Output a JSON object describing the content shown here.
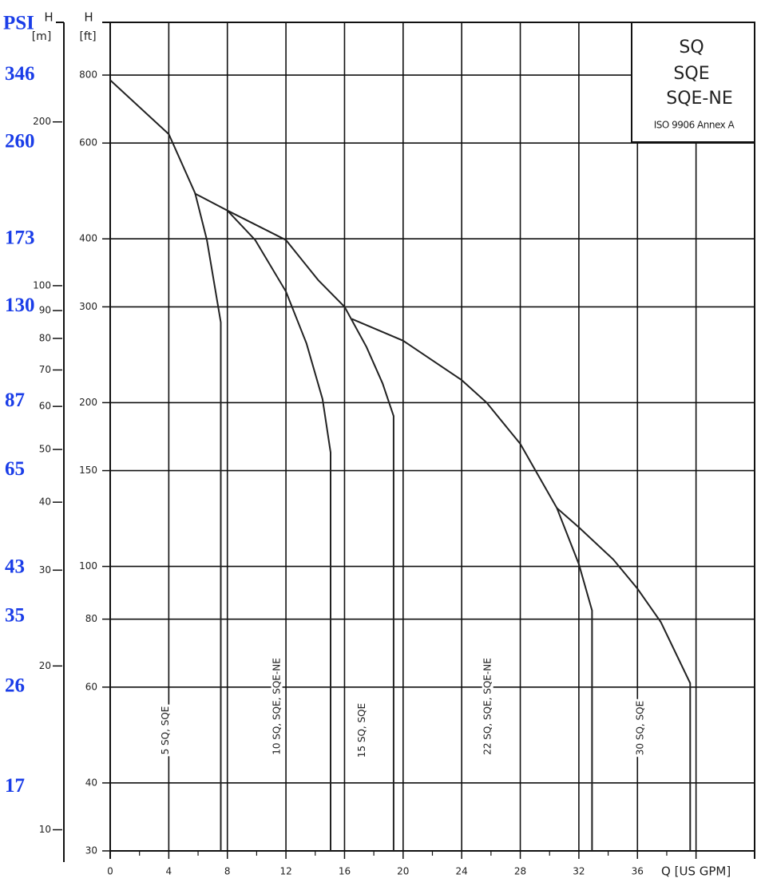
{
  "chart_data": {
    "type": "line",
    "log_scale": true,
    "grid": true,
    "xlim": [
      0,
      44
    ],
    "xticks": [
      0,
      4,
      8,
      12,
      16,
      20,
      24,
      28,
      32,
      36,
      {
        "value": 40,
        "label": "Q [US GPM]"
      }
    ],
    "ylabel": "H",
    "ylabel_unit": "[ft]",
    "ylim": [
      30,
      1000
    ],
    "yticks": [
      30,
      40,
      60,
      80,
      100,
      150,
      200,
      300,
      400,
      600,
      800
    ],
    "y2label": "H",
    "y2label_unit": "[m]",
    "y2lim": [
      9.144,
      304.8
    ],
    "y2ticks": [
      10,
      20,
      30,
      40,
      50,
      60,
      70,
      80,
      90,
      100,
      200
    ],
    "y3label": "PSI",
    "y3lim": [
      12.99,
      432.9
    ],
    "y3ticks": [
      346,
      260,
      173,
      130,
      87,
      65,
      43,
      35,
      26,
      17
    ],
    "y3color": "#1a3de8",
    "legend_box": {
      "lines": [
        "SQ",
        "SQE",
        "SQE-NE"
      ],
      "note": "ISO 9906 Annex A"
    },
    "series": [
      {
        "name": "5 SQ, SQE",
        "color": "#222222",
        "x": [
          0,
          4,
          5.8,
          6.6,
          7.55,
          7.55
        ],
        "values": [
          783,
          623,
          485,
          398,
          281,
          30
        ]
      },
      {
        "name": "10 SQ, SQE, SQE-NE",
        "color": "#222222",
        "x": [
          5.76,
          8,
          9.9,
          12,
          13.4,
          14.5,
          15.05,
          15.05
        ],
        "values": [
          485,
          451,
          398,
          320,
          257,
          203,
          162,
          30
        ]
      },
      {
        "name": "15 SQ, SQE",
        "color": "#222222",
        "x": [
          8,
          12,
          14.2,
          16,
          17.5,
          18.6,
          19.35,
          19.35
        ],
        "values": [
          451,
          398,
          336,
          300,
          253,
          217,
          189,
          30
        ]
      },
      {
        "name": "22 SQ, SQE, SQE-NE",
        "color": "#222222",
        "x": [
          16.5,
          20,
          24,
          25.7,
          28,
          30.5,
          32,
          32.9,
          32.9
        ],
        "values": [
          285,
          260,
          220,
          200,
          168,
          128,
          101,
          83,
          30
        ]
      },
      {
        "name": "30 SQ, SQE",
        "color": "#222222",
        "x": [
          30.5,
          32,
          34.35,
          36,
          37.6,
          39.6,
          39.6
        ],
        "values": [
          128,
          118,
          103,
          91,
          79,
          61,
          30
        ]
      }
    ]
  }
}
